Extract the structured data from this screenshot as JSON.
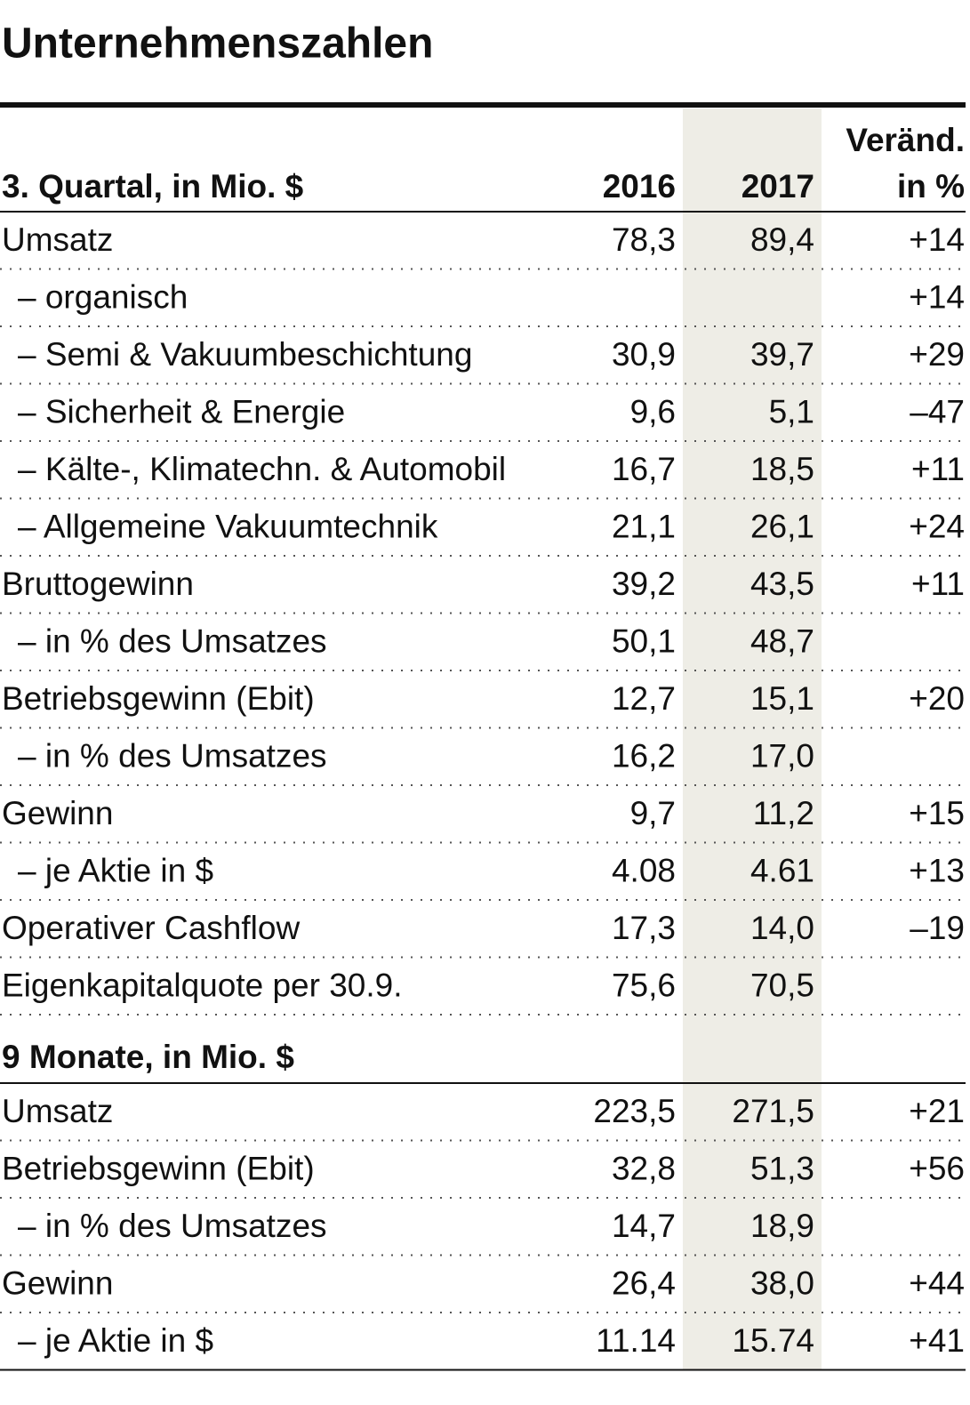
{
  "title": "Unternehmenszahlen",
  "columns": {
    "year1": "2016",
    "year2": "2017",
    "change": [
      "Veränd.",
      "in %"
    ]
  },
  "sections": [
    {
      "heading": "3. Quartal, in Mio. $",
      "rows": [
        [
          "Umsatz",
          "78,3",
          "89,4",
          "+14"
        ],
        [
          "– organisch",
          null,
          null,
          "+14"
        ],
        [
          "– Semi & Vakuumbeschichtung",
          "30,9",
          "39,7",
          "+29"
        ],
        [
          "– Sicherheit & Energie",
          "9,6",
          "5,1",
          "–47"
        ],
        [
          "– Kälte-, Klimatechn. & Automobil",
          "16,7",
          "18,5",
          "+11"
        ],
        [
          "– Allgemeine Vakuumtechnik",
          "21,1",
          "26,1",
          "+24"
        ],
        [
          "Bruttogewinn",
          "39,2",
          "43,5",
          "+11"
        ],
        [
          "– in % des Umsatzes",
          "50,1",
          "48,7",
          null
        ],
        [
          "Betriebsgewinn (Ebit)",
          "12,7",
          "15,1",
          "+20"
        ],
        [
          "– in % des Umsatzes",
          "16,2",
          "17,0",
          null
        ],
        [
          "Gewinn",
          "9,7",
          "11,2",
          "+15"
        ],
        [
          "– je Aktie in $",
          "4.08",
          "4.61",
          "+13"
        ],
        [
          "Operativer Cashflow",
          "17,3",
          "14,0",
          "–19"
        ],
        [
          "Eigenkapitalquote per 30.9.",
          "75,6",
          "70,5",
          null
        ]
      ]
    },
    {
      "heading": "9 Monate, in Mio. $",
      "rows": [
        [
          "Umsatz",
          "223,5",
          "271,5",
          "+21"
        ],
        [
          "Betriebsgewinn (Ebit)",
          "32,8",
          "51,3",
          "+56"
        ],
        [
          "– in % des Umsatzes",
          "14,7",
          "18,9",
          null
        ],
        [
          "Gewinn",
          "26,4",
          "38,0",
          "+44"
        ],
        [
          "– je Aktie in $",
          "11.14",
          "15.74",
          "+41"
        ]
      ]
    }
  ]
}
